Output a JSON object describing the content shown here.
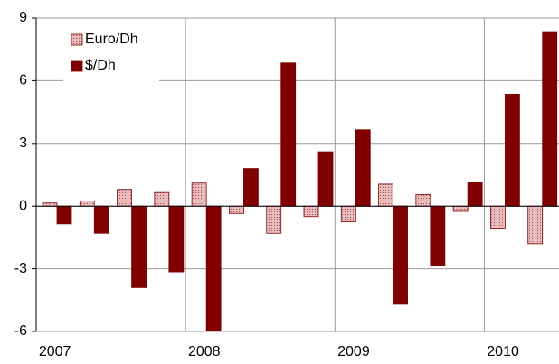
{
  "chart_data": {
    "type": "bar",
    "categories": [
      "2007",
      null,
      null,
      null,
      "2008",
      null,
      null,
      null,
      "2009",
      null,
      null,
      null,
      "2010",
      null
    ],
    "series": [
      {
        "name": "Euro/Dh",
        "color": "#d9a3a3",
        "values": [
          0.15,
          0.25,
          0.8,
          0.65,
          1.1,
          -0.35,
          -1.3,
          -0.5,
          -0.75,
          1.05,
          0.55,
          -0.25,
          -1.05,
          -1.8
        ]
      },
      {
        "name": "$/Dh",
        "color": "#800000",
        "values": [
          -0.85,
          -1.3,
          -3.9,
          -3.15,
          -5.95,
          1.8,
          6.85,
          2.6,
          3.65,
          -4.7,
          -2.85,
          1.15,
          5.35,
          8.35
        ]
      }
    ],
    "ylim": [
      -6,
      9
    ],
    "yticks": [
      -6,
      -3,
      0,
      3,
      6,
      9
    ],
    "grid": true,
    "legend": "upper left"
  }
}
